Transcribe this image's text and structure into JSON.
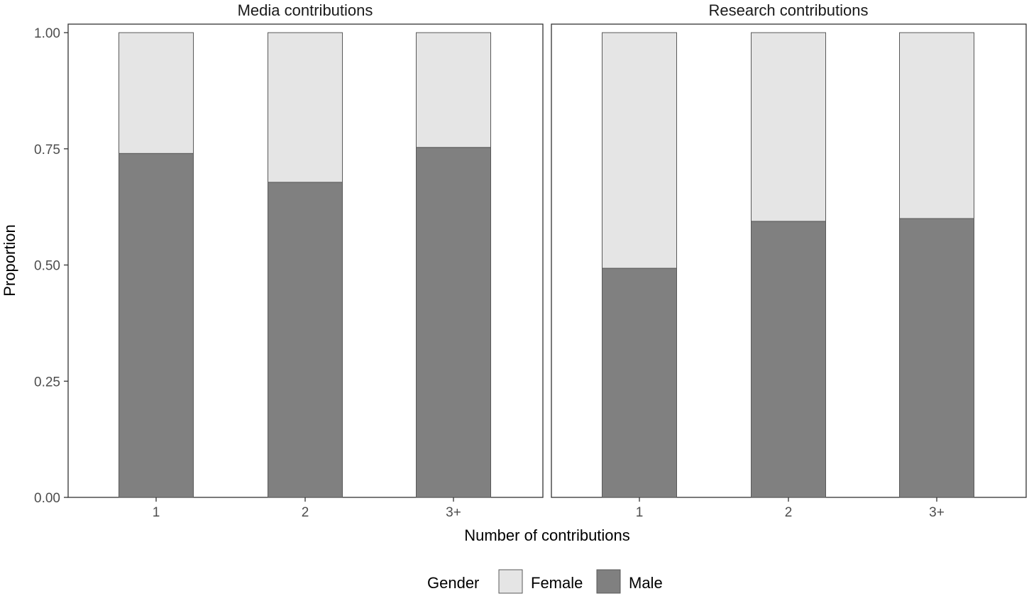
{
  "chart_data": {
    "type": "bar",
    "stacked": true,
    "xlabel": "Number of contributions",
    "ylabel": "Proportion",
    "ylim": [
      0,
      1
    ],
    "yticks": [
      "0.00",
      "0.25",
      "0.50",
      "0.75",
      "1.00"
    ],
    "categories": [
      "1",
      "2",
      "3+"
    ],
    "legend": {
      "title": "Gender",
      "placement": "bottom",
      "entries": [
        "Female",
        "Male"
      ]
    },
    "colors": {
      "Female": "#e5e5e5",
      "Male": "#808080",
      "bar_outline": "#595959",
      "panel_border": "#333333"
    },
    "panels": [
      {
        "title": "Media contributions",
        "series": [
          {
            "name": "Male",
            "values": [
              0.74,
              0.678,
              0.753
            ]
          },
          {
            "name": "Female",
            "values": [
              0.26,
              0.322,
              0.247
            ]
          }
        ]
      },
      {
        "title": "Research contributions",
        "series": [
          {
            "name": "Male",
            "values": [
              0.493,
              0.594,
              0.6
            ]
          },
          {
            "name": "Female",
            "values": [
              0.507,
              0.406,
              0.4
            ]
          }
        ]
      }
    ]
  }
}
